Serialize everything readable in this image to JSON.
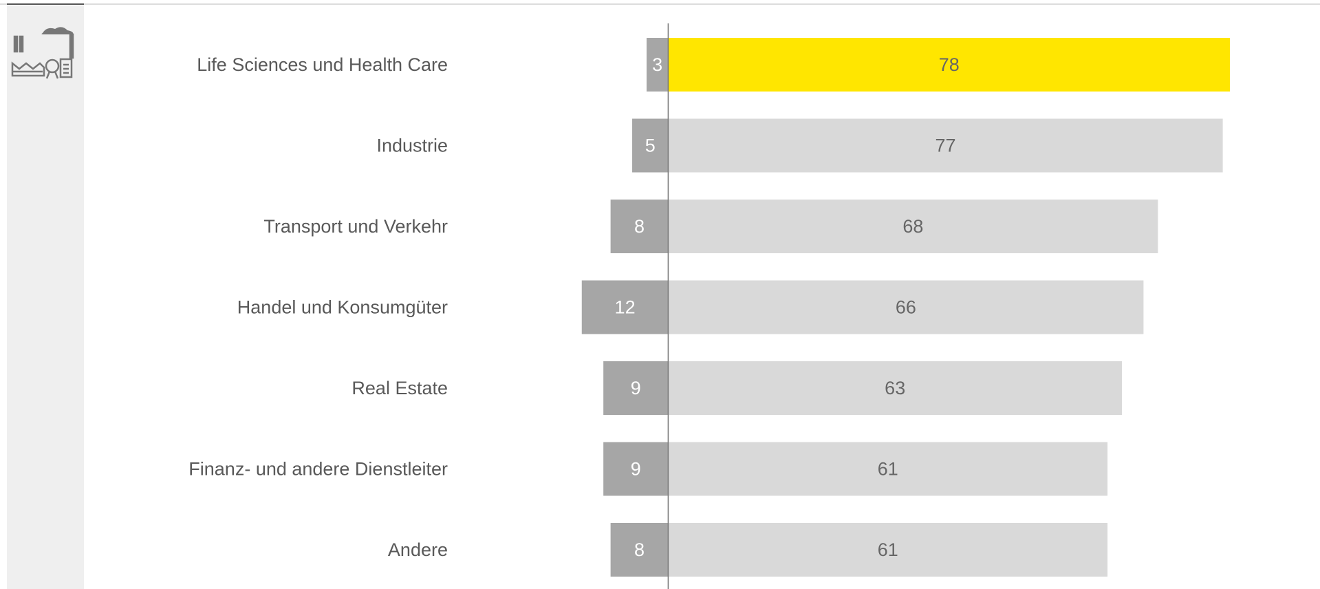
{
  "chart_data": {
    "type": "bar",
    "orientation": "horizontal",
    "categories": [
      "Life Sciences und Health Care",
      "Industrie",
      "Transport und Verkehr",
      "Handel und Konsumgüter",
      "Real Estate",
      "Finanz- und andere Dienstleiter",
      "Andere"
    ],
    "series": [
      {
        "color": "#a6a6a6",
        "values": [
          -3,
          -5,
          -8,
          -12,
          -9,
          -9,
          -8
        ],
        "value_labels": [
          "3",
          "5",
          "8",
          "12",
          "9",
          "9",
          "8"
        ],
        "label_color": "#ffffff"
      },
      {
        "color": "#d9d9d9",
        "colors": [
          "#ffe600",
          "#d9d9d9",
          "#d9d9d9",
          "#d9d9d9",
          "#d9d9d9",
          "#d9d9d9",
          "#d9d9d9"
        ],
        "values": [
          78,
          77,
          68,
          66,
          63,
          61,
          61
        ],
        "label_color": "#666666"
      }
    ],
    "xlim": [
      -20,
      80
    ]
  }
}
